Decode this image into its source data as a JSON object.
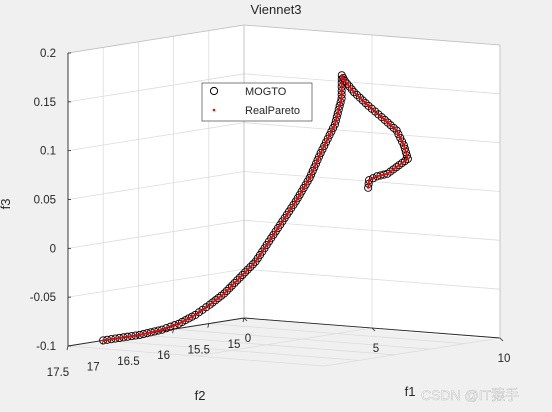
{
  "chart_data": {
    "type": "scatter",
    "title": "Viennet3",
    "xlabel": "f2",
    "ylabel": "f1",
    "zlabel": "f3",
    "x_ticks": [
      "17.5",
      "17",
      "16.5",
      "16",
      "15.5",
      "15"
    ],
    "y_ticks": [
      "0",
      "5",
      "10"
    ],
    "z_ticks": [
      "0.2",
      "0.15",
      "0.1",
      "0.05",
      "0",
      "-0.05",
      "-0.1"
    ],
    "xlim": [
      15,
      17.5
    ],
    "ylim": [
      0,
      10
    ],
    "zlim": [
      -0.1,
      0.2
    ],
    "grid": true,
    "legend_position": "upper-left",
    "legend": [
      {
        "label": "MOGTO",
        "marker": "open-circle",
        "color": "#000000"
      },
      {
        "label": "RealPareto",
        "marker": "dot",
        "color": "#ff0000"
      }
    ],
    "series": [
      {
        "name": "MOGTO",
        "marker": "open-circle",
        "color": "#000000",
        "curve": [
          {
            "x": 17.0,
            "y": 0.0,
            "z": -0.1
          },
          {
            "x": 16.5,
            "y": 0.05,
            "z": -0.1
          },
          {
            "x": 16.2,
            "y": 0.1,
            "z": -0.098
          },
          {
            "x": 16.0,
            "y": 0.2,
            "z": -0.094
          },
          {
            "x": 15.8,
            "y": 0.3,
            "z": -0.087
          },
          {
            "x": 15.65,
            "y": 0.45,
            "z": -0.078
          },
          {
            "x": 15.5,
            "y": 0.6,
            "z": -0.068
          },
          {
            "x": 15.35,
            "y": 0.8,
            "z": -0.053
          },
          {
            "x": 15.2,
            "y": 1.0,
            "z": -0.038
          },
          {
            "x": 15.1,
            "y": 1.25,
            "z": -0.018
          },
          {
            "x": 15.0,
            "y": 1.5,
            "z": 0.002
          },
          {
            "x": 14.92,
            "y": 1.8,
            "z": 0.022
          },
          {
            "x": 14.85,
            "y": 2.15,
            "z": 0.046
          },
          {
            "x": 14.82,
            "y": 2.5,
            "z": 0.072
          },
          {
            "x": 14.8,
            "y": 3.0,
            "z": 0.102
          },
          {
            "x": 14.85,
            "y": 3.4,
            "z": 0.13
          },
          {
            "x": 14.92,
            "y": 3.6,
            "z": 0.155
          },
          {
            "x": 14.95,
            "y": 3.8,
            "z": 0.15
          },
          {
            "x": 15.0,
            "y": 4.3,
            "z": 0.14
          },
          {
            "x": 15.05,
            "y": 5.0,
            "z": 0.128
          },
          {
            "x": 15.08,
            "y": 5.6,
            "z": 0.118
          },
          {
            "x": 15.05,
            "y": 6.1,
            "z": 0.105
          },
          {
            "x": 15.02,
            "y": 6.3,
            "z": 0.09
          },
          {
            "x": 15.0,
            "y": 6.4,
            "z": 0.076
          },
          {
            "x": 15.2,
            "y": 6.5,
            "z": 0.07
          },
          {
            "x": 15.4,
            "y": 6.7,
            "z": 0.066
          },
          {
            "x": 15.6,
            "y": 6.85,
            "z": 0.066
          },
          {
            "x": 15.75,
            "y": 6.95,
            "z": 0.064
          },
          {
            "x": 15.8,
            "y": 7.05,
            "z": 0.057
          }
        ]
      },
      {
        "name": "RealPareto",
        "marker": "dot",
        "color": "#ff0000",
        "same_curve_as": "MOGTO"
      }
    ]
  },
  "watermark": "CSDN @IT猿手"
}
